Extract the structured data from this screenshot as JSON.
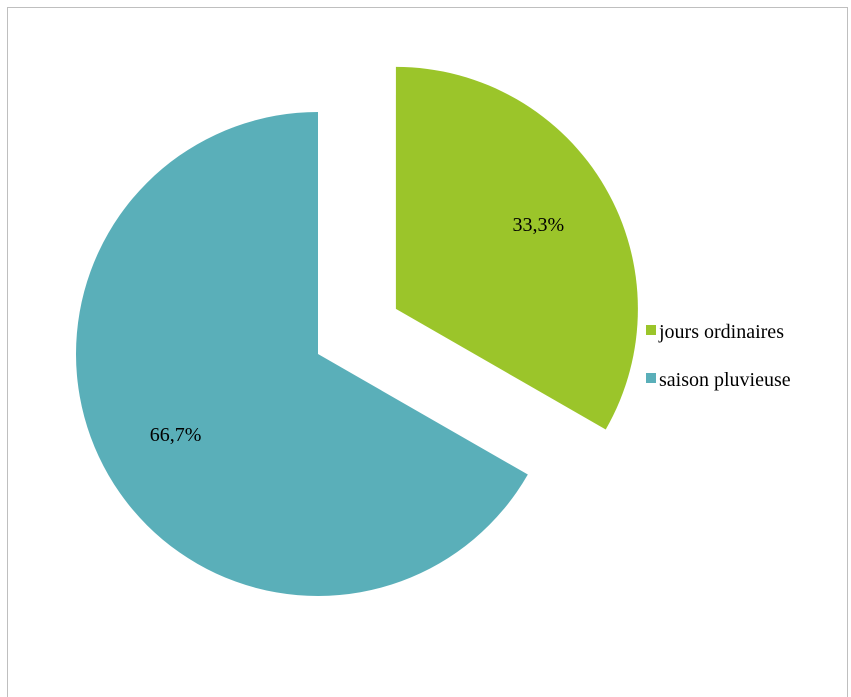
{
  "chart_data": {
    "type": "pie",
    "exploded": true,
    "title": "",
    "legend_position": "right",
    "slices": [
      {
        "label": "jours ordinaires",
        "value": 33.3,
        "display": "33,3%",
        "color": "#9BC52A",
        "exploded": true
      },
      {
        "label": "saison pluvieuse",
        "value": 66.7,
        "display": "66,7%",
        "color": "#5AAFB9",
        "exploded": false
      }
    ]
  }
}
